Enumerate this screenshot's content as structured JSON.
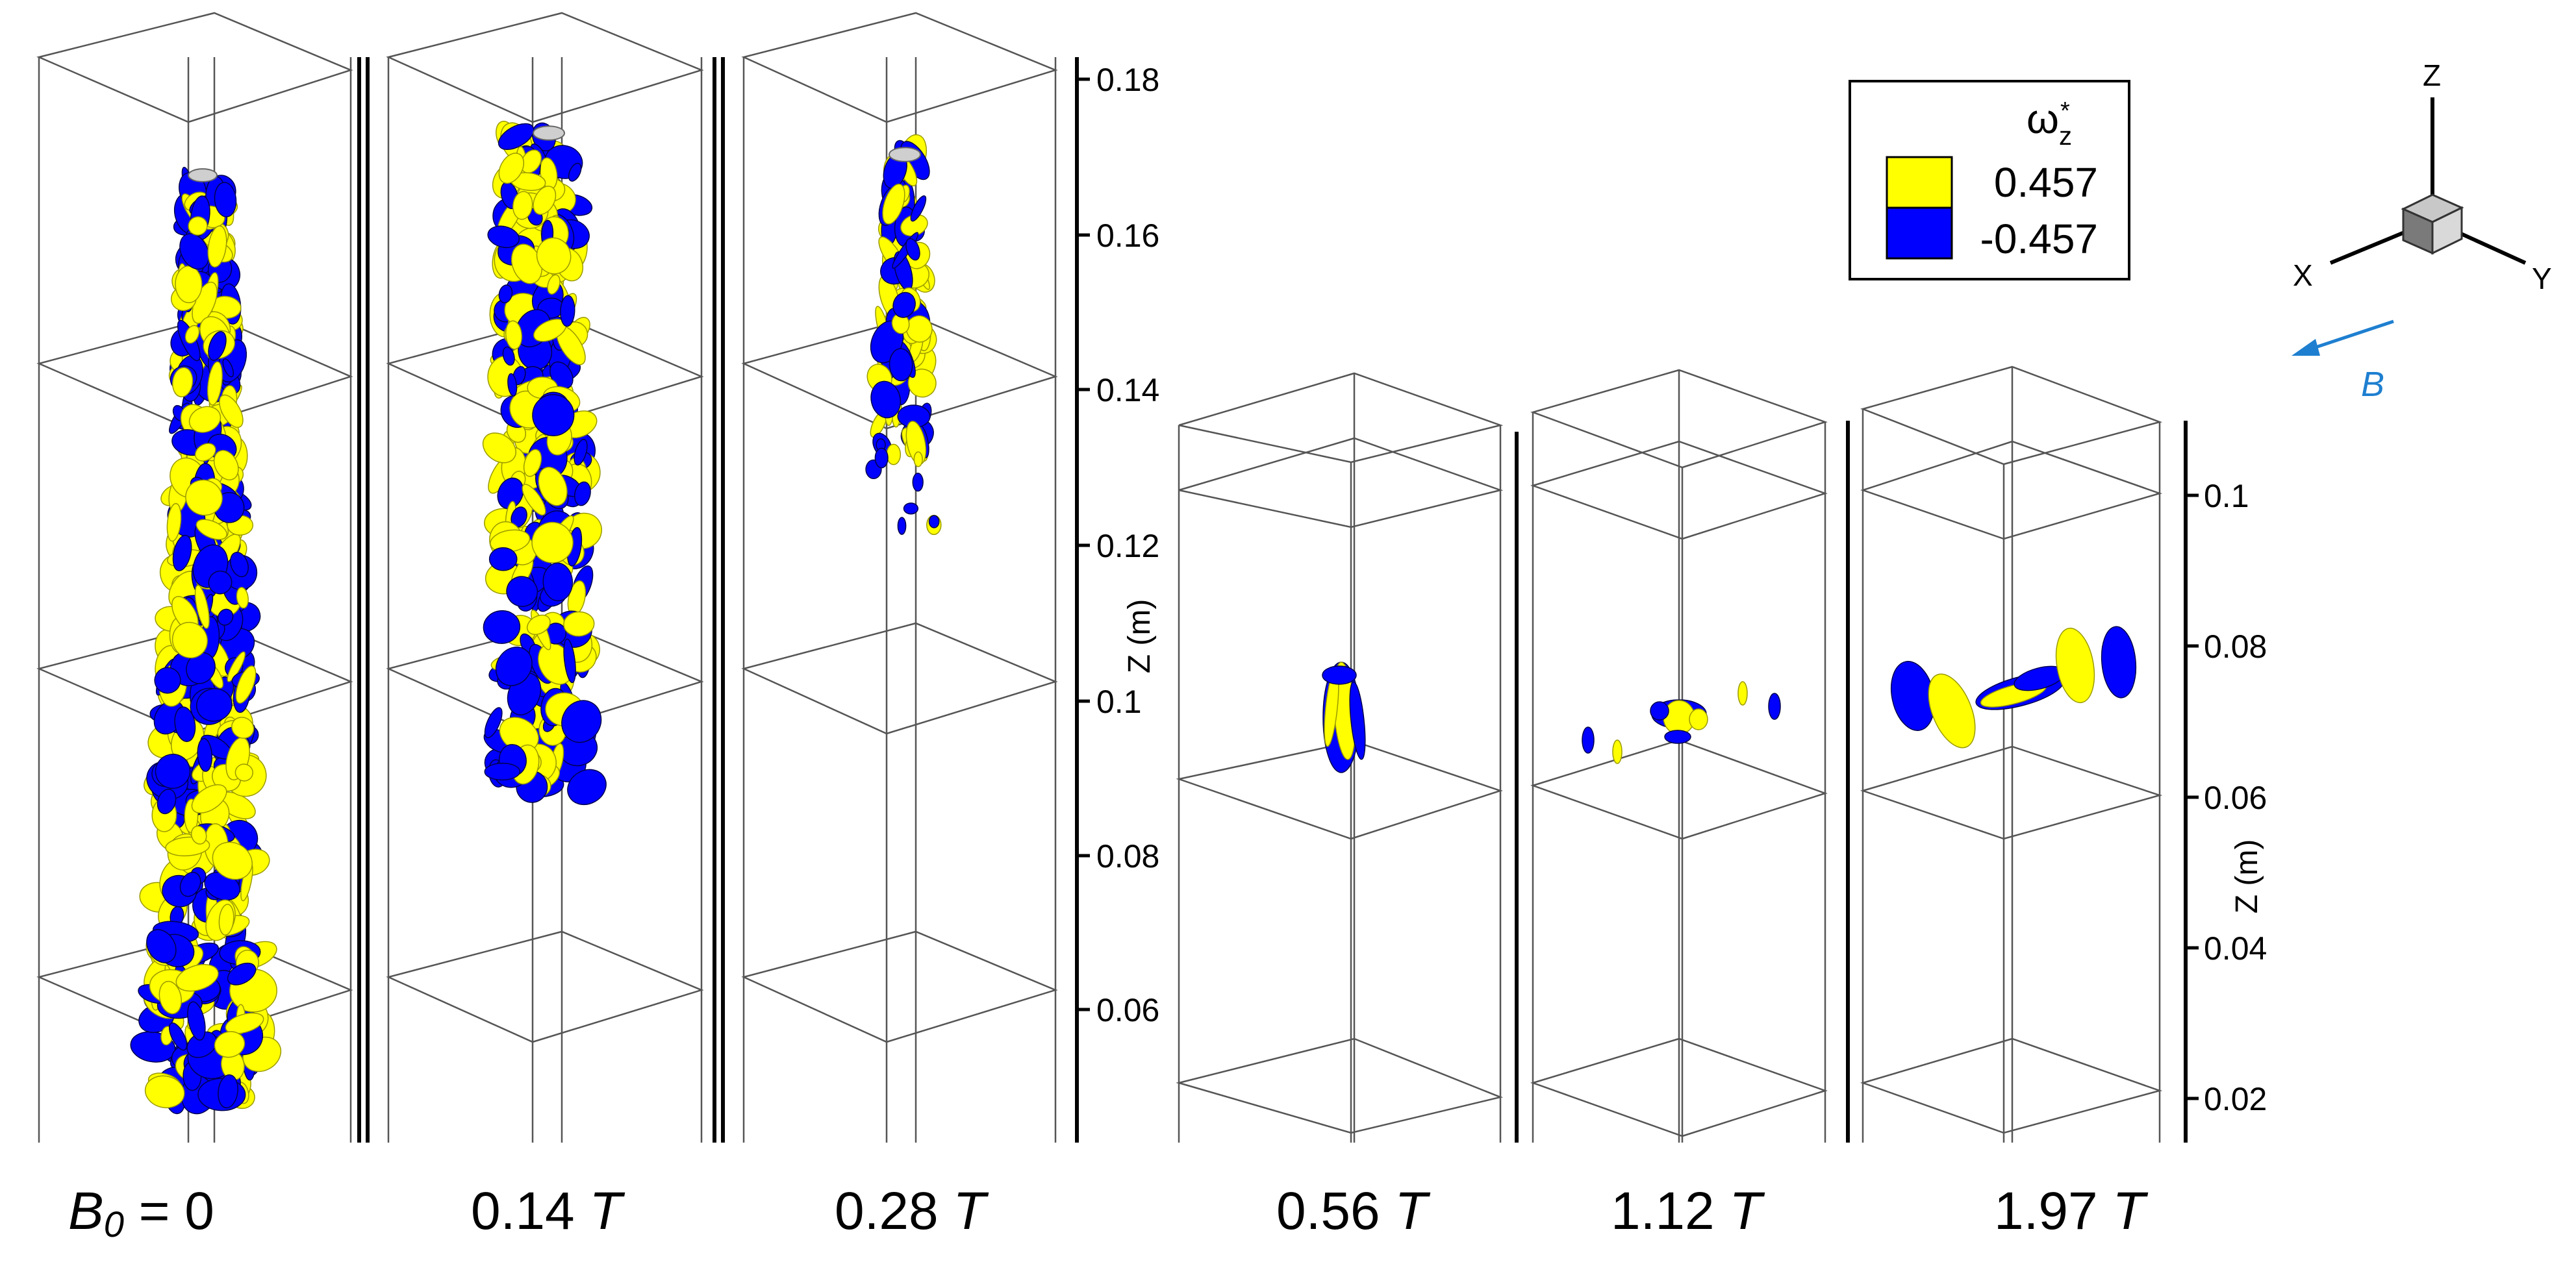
{
  "panels": [
    {
      "label_main": "B",
      "label_sub": "0",
      "label_rest": " = 0"
    },
    {
      "label_value": "0.14 ",
      "label_unit": "T"
    },
    {
      "label_value": "0.28 ",
      "label_unit": "T"
    },
    {
      "label_value": "0.56 ",
      "label_unit": "T"
    },
    {
      "label_value": "1.12 ",
      "label_unit": "T"
    },
    {
      "label_value": "1.97 ",
      "label_unit": "T"
    }
  ],
  "axis_left": {
    "title": "Z (m)",
    "ticks": [
      "0.18",
      "0.16",
      "0.14",
      "0.12",
      "0.1",
      "0.08",
      "0.06"
    ]
  },
  "axis_right": {
    "title": "Z (m)",
    "ticks": [
      "0.1",
      "0.08",
      "0.06",
      "0.04",
      "0.02"
    ]
  },
  "legend": {
    "symbol": "ω",
    "subscript": "z",
    "superscript": "*",
    "entries": [
      {
        "value": "0.457",
        "color": "#FFFF00"
      },
      {
        "value": "-0.457",
        "color": "#0000FF"
      }
    ]
  },
  "triad": {
    "z": "Z",
    "x": "X",
    "y": "Y"
  },
  "field": {
    "label": "B",
    "color": "#1E7FD0"
  },
  "colors": {
    "positive": "#FFFF00",
    "negative": "#0000FF"
  }
}
